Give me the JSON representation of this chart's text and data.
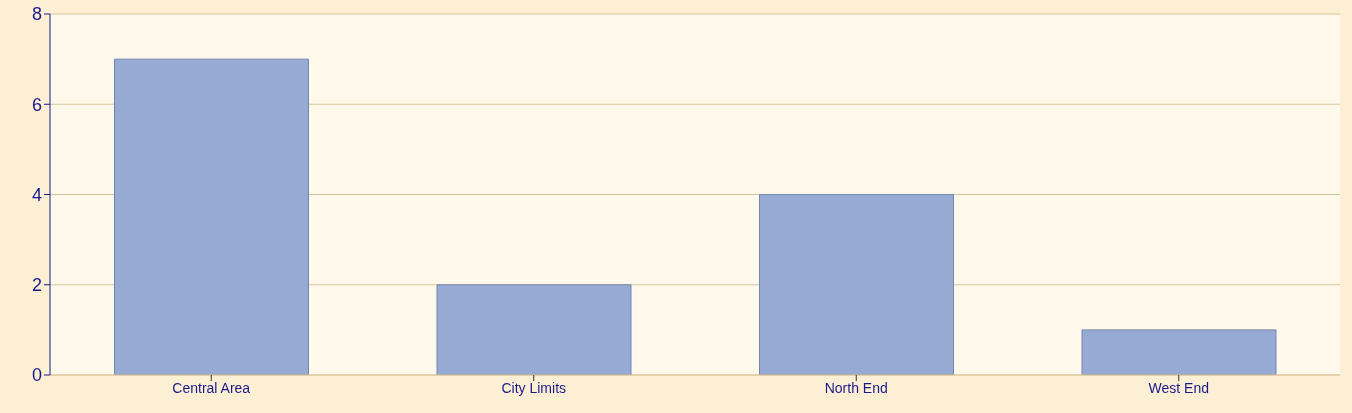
{
  "chart_data": {
    "type": "bar",
    "categories": [
      "Central Area",
      "City Limits",
      "North End",
      "West End"
    ],
    "values": [
      7,
      2,
      4,
      1
    ],
    "color": "#96aad4",
    "ylim": [
      0,
      8
    ],
    "yticks": [
      0,
      2,
      4,
      6,
      8
    ],
    "grid": "y"
  }
}
